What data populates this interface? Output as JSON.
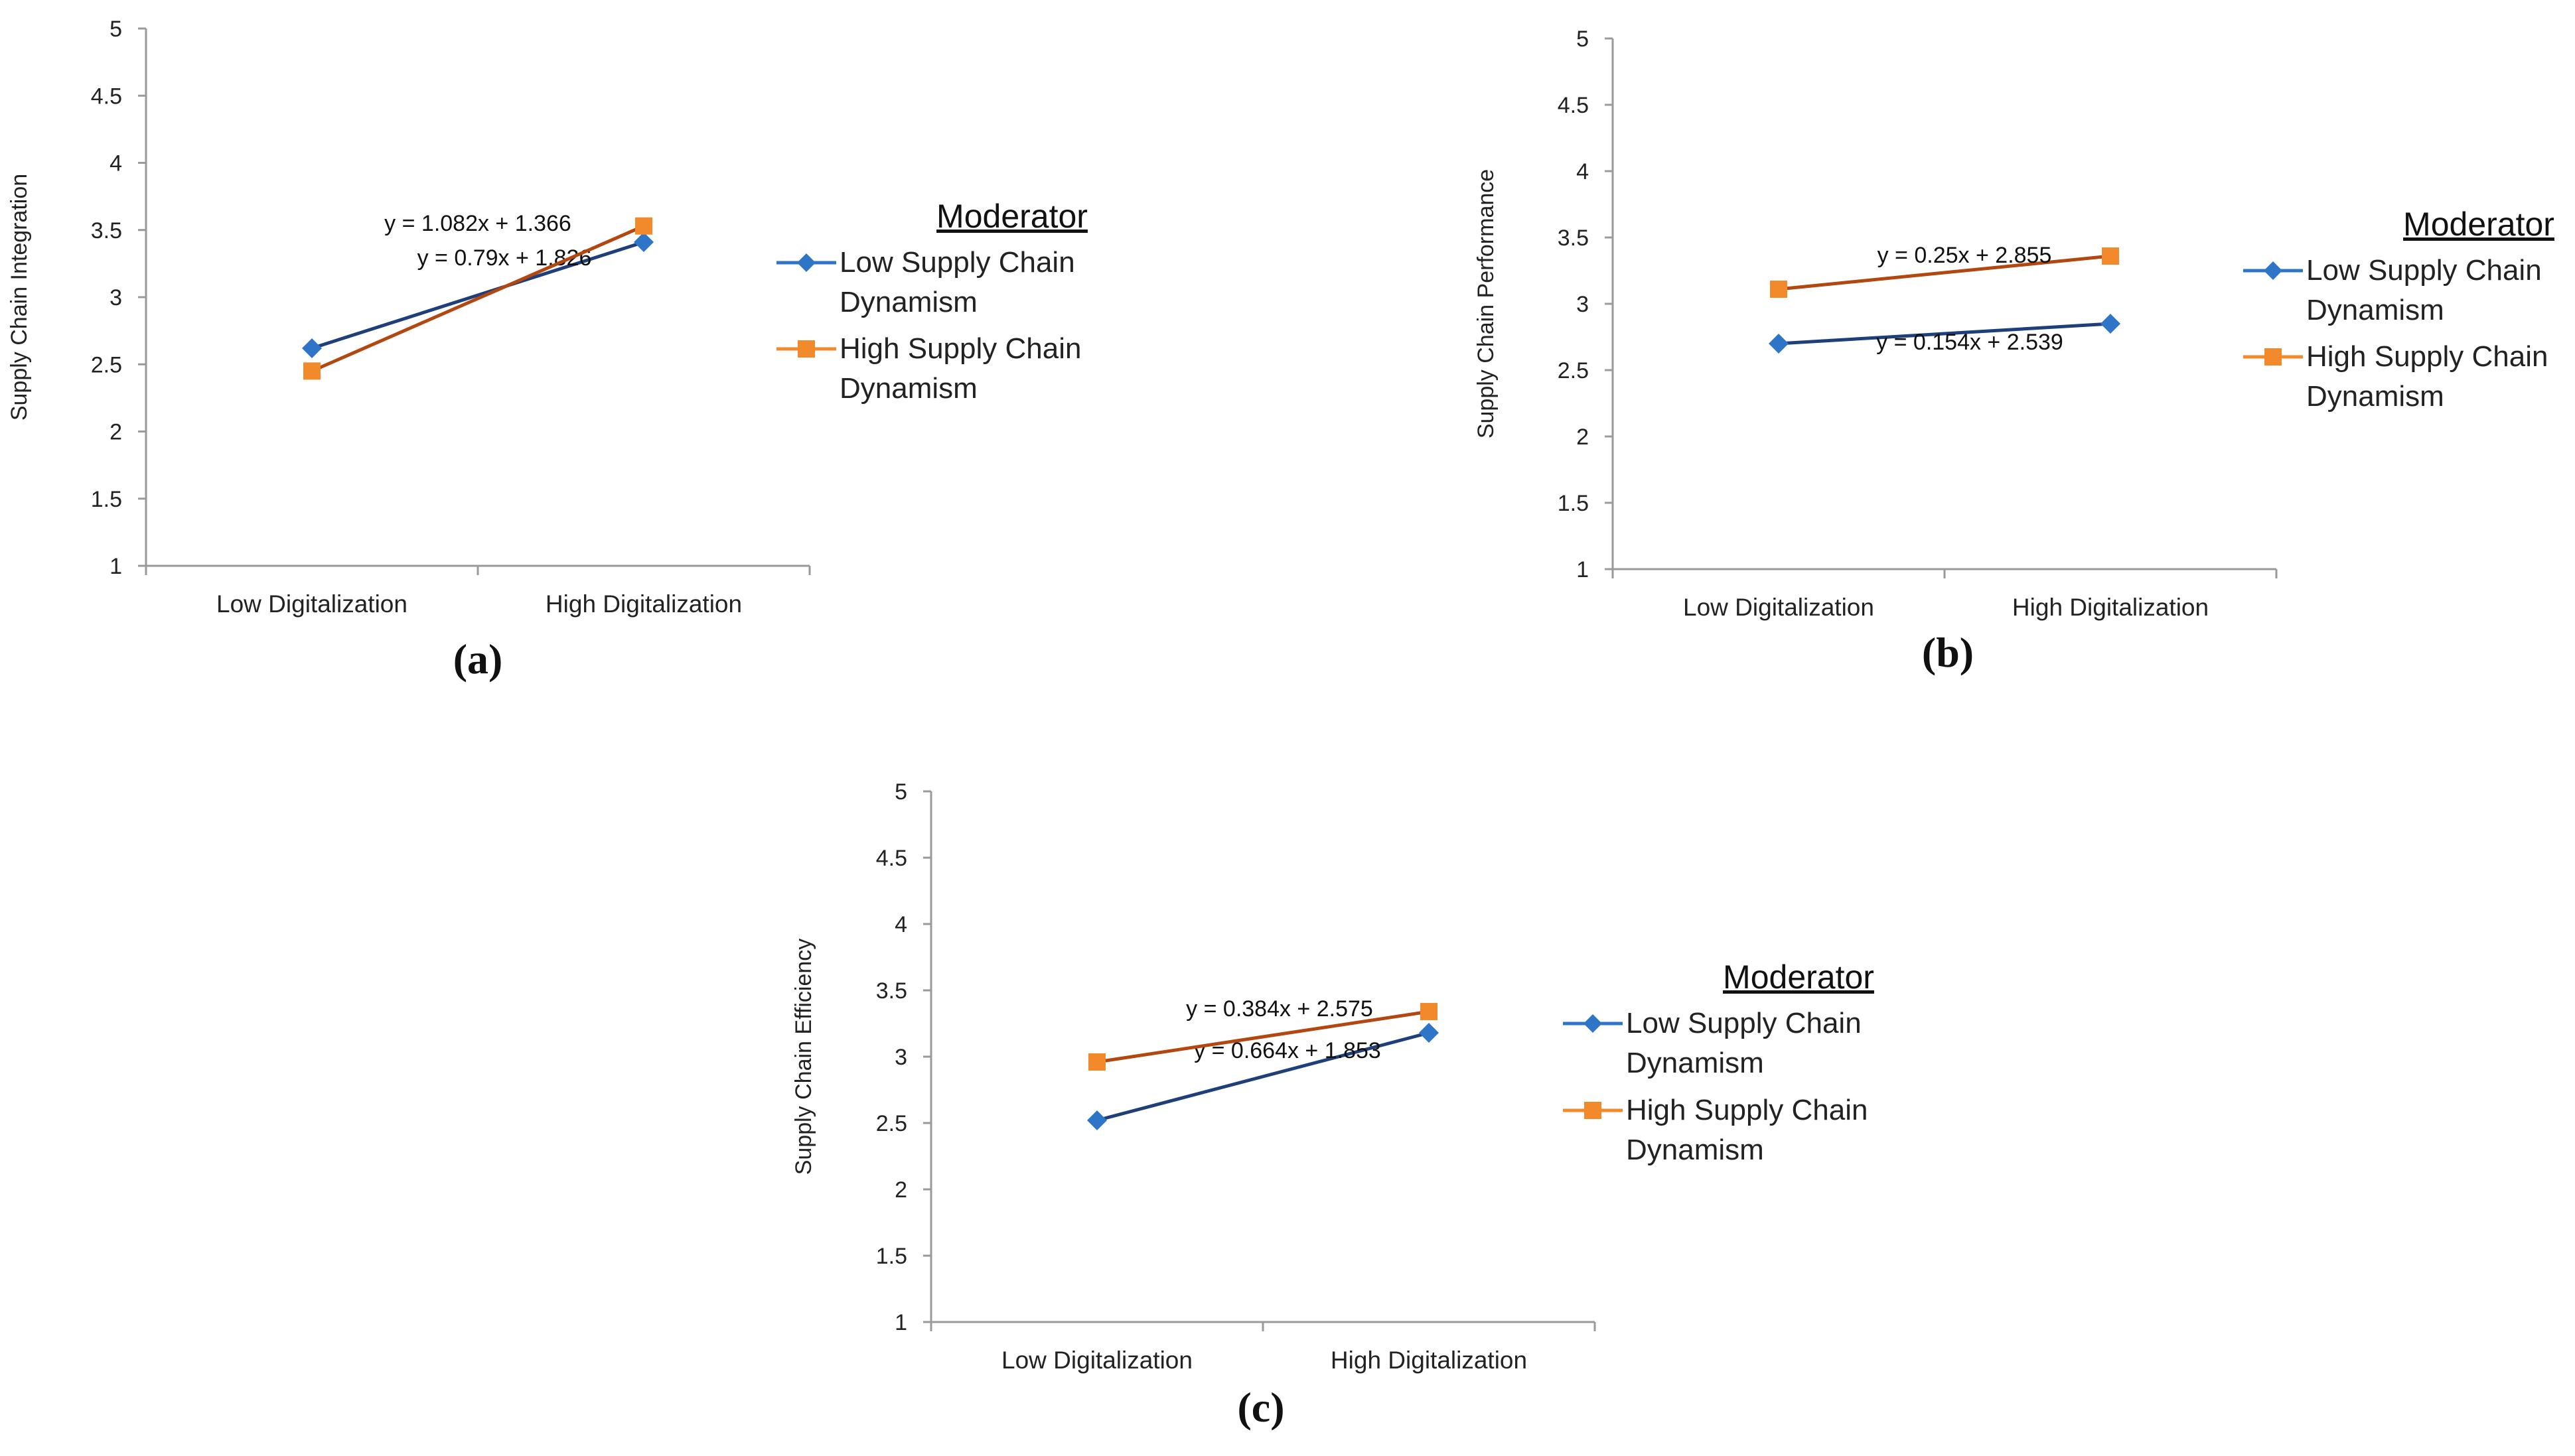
{
  "chart_data": [
    {
      "type": "line",
      "panel_label": "(a)",
      "ylabel": "Supply Chain Integration",
      "xlabel": "",
      "categories": [
        "Low Digitalization",
        "High Digitalization"
      ],
      "ylim": [
        1,
        5
      ],
      "yticks": [
        "1",
        "1.5",
        "2",
        "2.5",
        "3",
        "3.5",
        "4",
        "4.5",
        "5"
      ],
      "legend_title": "Moderator",
      "series": [
        {
          "name": "Low Supply Chain Dynamism",
          "legend_lines": [
            "Low Supply Chain",
            "Dynamism"
          ],
          "values": [
            2.62,
            3.41
          ],
          "equation": "y = 0.79x + 1.826",
          "marker": "diamond"
        },
        {
          "name": "High Supply Chain Dynamism",
          "legend_lines": [
            "High Supply Chain",
            "Dynamism"
          ],
          "values": [
            2.45,
            3.53
          ],
          "equation": "y = 1.082x + 1.366",
          "marker": "square"
        }
      ]
    },
    {
      "type": "line",
      "panel_label": "(b)",
      "ylabel": "Supply Chain Performance",
      "xlabel": "",
      "categories": [
        "Low Digitalization",
        "High Digitalization"
      ],
      "ylim": [
        1,
        5
      ],
      "yticks": [
        "1",
        "1.5",
        "2",
        "2.5",
        "3",
        "3.5",
        "4",
        "4.5",
        "5"
      ],
      "legend_title": "Moderator",
      "series": [
        {
          "name": "Low Supply Chain Dynamism",
          "legend_lines": [
            "Low Supply Chain",
            "Dynamism"
          ],
          "values": [
            2.7,
            2.85
          ],
          "equation": "y = 0.154x + 2.539",
          "marker": "diamond"
        },
        {
          "name": "High Supply Chain Dynamism",
          "legend_lines": [
            "High Supply Chain",
            "Dynamism"
          ],
          "values": [
            3.11,
            3.36
          ],
          "equation": "y = 0.25x + 2.855",
          "marker": "square"
        }
      ]
    },
    {
      "type": "line",
      "panel_label": "(c)",
      "ylabel": "Supply Chain Efficiency",
      "xlabel": "",
      "categories": [
        "Low Digitalization",
        "High Digitalization"
      ],
      "ylim": [
        1,
        5
      ],
      "yticks": [
        "1",
        "1.5",
        "2",
        "2.5",
        "3",
        "3.5",
        "4",
        "4.5",
        "5"
      ],
      "legend_title": "Moderator",
      "series": [
        {
          "name": "Low Supply Chain Dynamism",
          "legend_lines": [
            "Low Supply Chain",
            "Dynamism"
          ],
          "values": [
            2.52,
            3.18
          ],
          "equation": "y = 0.664x + 1.853",
          "marker": "diamond"
        },
        {
          "name": "High Supply Chain Dynamism",
          "legend_lines": [
            "High Supply Chain",
            "Dynamism"
          ],
          "values": [
            2.96,
            3.34
          ],
          "equation": "y = 0.384x + 2.575",
          "marker": "square"
        }
      ]
    }
  ],
  "colors": {
    "low_marker": "#2E75C8",
    "low_line": "#1F3F7A",
    "high_marker": "#F28A2B",
    "high_line": "#B2470F",
    "axis": "#9a9a9a"
  }
}
